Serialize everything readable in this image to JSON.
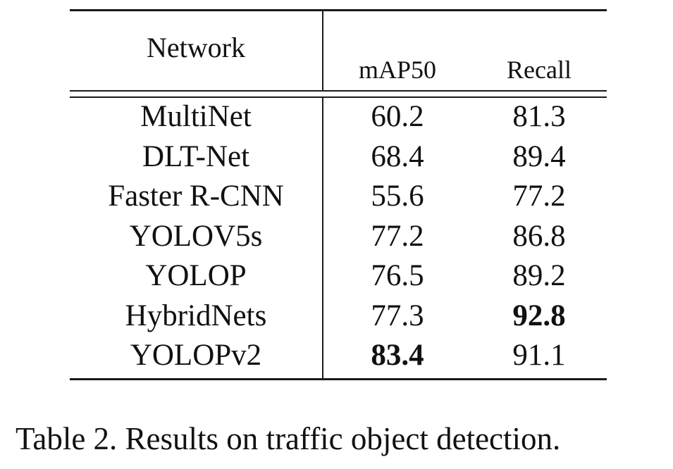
{
  "table": {
    "headers": {
      "network": "Network",
      "map": "mAP50",
      "recall": "Recall"
    },
    "rows": [
      {
        "network": "MultiNet",
        "map": "60.2",
        "recall": "81.3",
        "map_bold": false,
        "recall_bold": false
      },
      {
        "network": "DLT-Net",
        "map": "68.4",
        "recall": "89.4",
        "map_bold": false,
        "recall_bold": false
      },
      {
        "network": "Faster R-CNN",
        "map": "55.6",
        "recall": "77.2",
        "map_bold": false,
        "recall_bold": false
      },
      {
        "network": "YOLOV5s",
        "map": "77.2",
        "recall": "86.8",
        "map_bold": false,
        "recall_bold": false
      },
      {
        "network": "YOLOP",
        "map": "76.5",
        "recall": "89.2",
        "map_bold": false,
        "recall_bold": false
      },
      {
        "network": "HybridNets",
        "map": "77.3",
        "recall": "92.8",
        "map_bold": false,
        "recall_bold": true
      },
      {
        "network": "YOLOPv2",
        "map": "83.4",
        "recall": "91.1",
        "map_bold": true,
        "recall_bold": false
      }
    ]
  },
  "caption": "Table 2. Results on traffic object detection."
}
